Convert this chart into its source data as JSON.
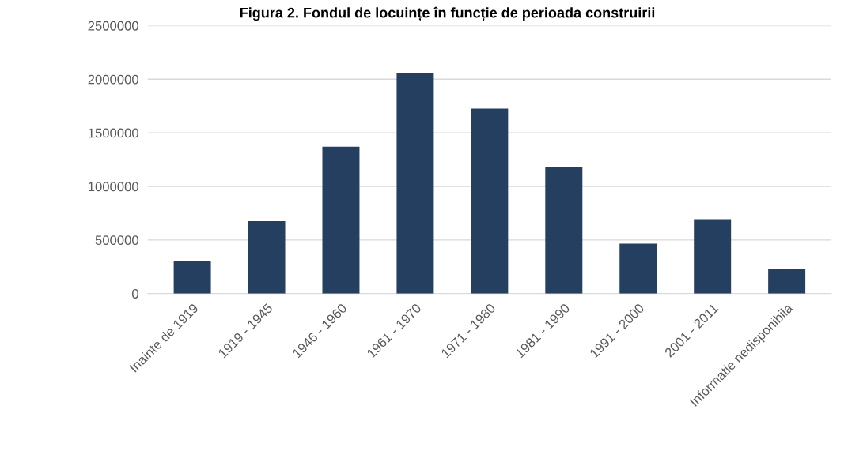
{
  "chart_data": {
    "type": "bar",
    "title": "Figura 2. Fondul de locuințe în funcție de perioada construirii",
    "categories": [
      "Inainte de 1919",
      "1919 - 1945",
      "1946 - 1960",
      "1961 - 1970",
      "1971 - 1980",
      "1981 - 1990",
      "1991 - 2000",
      "2001 - 2011",
      "Informatie nedisponibila"
    ],
    "values": [
      300000,
      675000,
      1370000,
      2055000,
      1725000,
      1185000,
      465000,
      695000,
      232000
    ],
    "color": "#243f60",
    "ylim": [
      0,
      2500000
    ],
    "yticks": [
      0,
      500000,
      1000000,
      1500000,
      2000000,
      2500000
    ],
    "grid": "y",
    "legend": false
  }
}
